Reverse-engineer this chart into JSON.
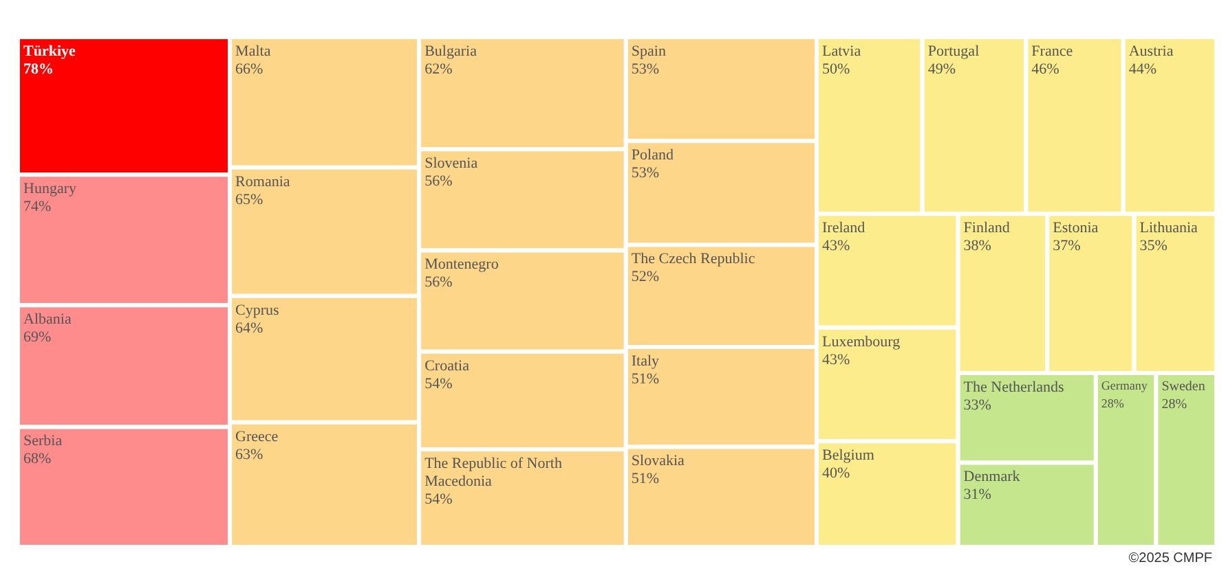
{
  "chart_data": {
    "type": "other",
    "categories": [
      "Türkiye",
      "Hungary",
      "Albania",
      "Serbia",
      "Malta",
      "Romania",
      "Cyprus",
      "Greece",
      "Bulgaria",
      "Slovenia",
      "Montenegro",
      "Croatia",
      "The Republic of North Macedonia",
      "Spain",
      "Poland",
      "The Czech Republic",
      "Italy",
      "Slovakia",
      "Latvia",
      "Portugal",
      "France",
      "Austria",
      "Ireland",
      "Luxembourg",
      "Belgium",
      "Finland",
      "Estonia",
      "Lithuania",
      "The Netherlands",
      "Denmark",
      "Germany",
      "Sweden"
    ],
    "values": [
      78,
      74,
      69,
      68,
      66,
      65,
      64,
      63,
      62,
      56,
      56,
      54,
      54,
      53,
      53,
      52,
      51,
      51,
      50,
      49,
      46,
      44,
      43,
      43,
      40,
      38,
      37,
      35,
      33,
      31,
      28,
      28
    ],
    "value_labels": [
      "78%",
      "74%",
      "69%",
      "68%",
      "66%",
      "65%",
      "64%",
      "63%",
      "62%",
      "56%",
      "56%",
      "54%",
      "54%",
      "53%",
      "53%",
      "52%",
      "51%",
      "51%",
      "50%",
      "49%",
      "46%",
      "44%",
      "43%",
      "43%",
      "40%",
      "38%",
      "37%",
      "35%",
      "33%",
      "31%",
      "28%",
      "28%"
    ],
    "colors": [
      "#ff0000",
      "#ff8c8c",
      "#ff8c8c",
      "#ff8c8c",
      "#fdd68a",
      "#fdd68a",
      "#fdd68a",
      "#fdd68a",
      "#fdd68a",
      "#fdd68a",
      "#fdd68a",
      "#fdd68a",
      "#fdd68a",
      "#fdd68a",
      "#fdd68a",
      "#fdd68a",
      "#fdd68a",
      "#fdd68a",
      "#fdec8c",
      "#fdec8c",
      "#fdec8c",
      "#fdec8c",
      "#fdec8c",
      "#fdec8c",
      "#fdec8c",
      "#fdec8c",
      "#fdec8c",
      "#fdec8c",
      "#c5e68c",
      "#c5e68c",
      "#c5e68c",
      "#c5e68c"
    ],
    "annotations": [
      "©2025 CMPF"
    ]
  }
}
